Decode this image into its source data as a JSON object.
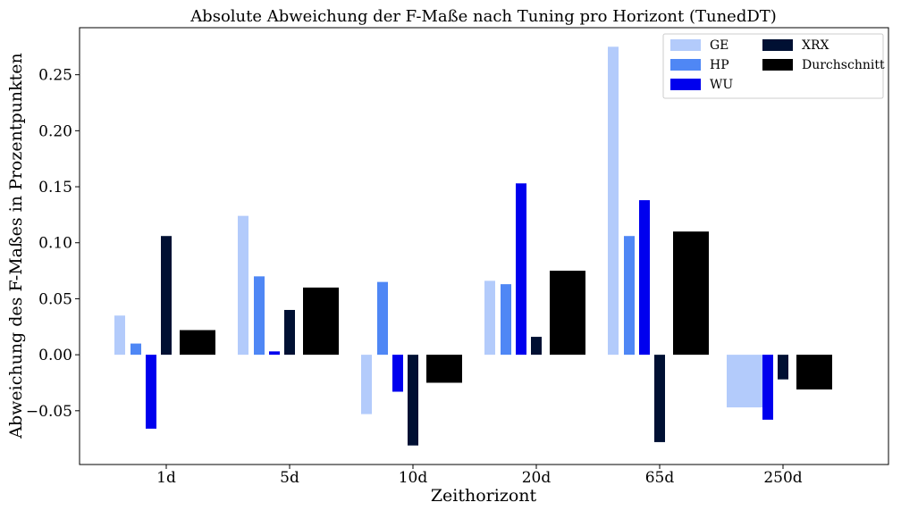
{
  "chart_data": {
    "type": "bar",
    "title": "Absolute Abweichung der F-Maße nach Tuning pro Horizont (TunedDT)",
    "xlabel": "Zeithorizont",
    "ylabel": "Abweichung des F-Maßes in Prozentpunkten",
    "categories": [
      "1d",
      "5d",
      "10d",
      "20d",
      "65d",
      "250d"
    ],
    "ylim": [
      -0.098,
      0.292
    ],
    "yticks": [
      -0.05,
      0.0,
      0.05,
      0.1,
      0.15,
      0.2,
      0.25
    ],
    "ytick_labels": [
      "−0.05",
      "0.00",
      "0.05",
      "0.10",
      "0.15",
      "0.20",
      "0.25"
    ],
    "grid": false,
    "legend_position": "top-right",
    "series": [
      {
        "name": "GE",
        "color": "#b3cbfb",
        "values": [
          0.035,
          0.124,
          -0.053,
          0.066,
          0.275,
          -0.047
        ]
      },
      {
        "name": "HP",
        "color": "#4f87f5",
        "values": [
          0.01,
          0.07,
          0.065,
          0.063,
          0.106,
          null
        ]
      },
      {
        "name": "WU",
        "color": "#0000ee",
        "values": [
          -0.066,
          0.003,
          -0.033,
          0.153,
          0.138,
          -0.058
        ]
      },
      {
        "name": "XRX",
        "color": "#001033",
        "values": [
          0.106,
          0.04,
          -0.081,
          0.016,
          -0.078,
          -0.022
        ]
      },
      {
        "name": "Durchschnitt",
        "color": "#000000",
        "values": [
          0.022,
          0.06,
          -0.025,
          0.075,
          0.11,
          -0.031
        ]
      }
    ]
  }
}
